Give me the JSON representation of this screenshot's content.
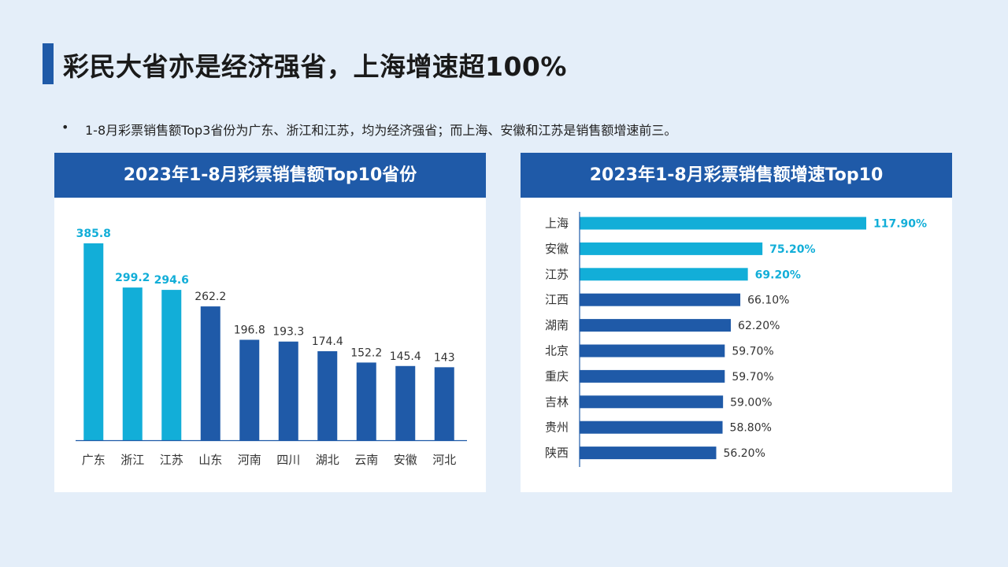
{
  "page": {
    "title": "彩民大省亦是经济强省，上海增速超100%",
    "bullet_marker": "•",
    "bullet": "1-8月彩票销售额Top3省份为广东、浙江和江苏，均为经济强省；而上海、安徽和江苏是销售额增速前三。"
  },
  "colors": {
    "highlight": "#12aed8",
    "normal": "#1f5aa8",
    "header_bg": "#1f5aa8"
  },
  "chart_data": [
    {
      "type": "bar",
      "title": "2023年1-8月彩票销售额Top10省份",
      "categories": [
        "广东",
        "浙江",
        "江苏",
        "山东",
        "河南",
        "四川",
        "湖北",
        "云南",
        "安徽",
        "河北"
      ],
      "values": [
        385.8,
        299.2,
        294.6,
        262.2,
        196.8,
        193.3,
        174.4,
        152.2,
        145.4,
        143
      ],
      "labels": [
        "385.8",
        "299.2",
        "294.6",
        "262.2",
        "196.8",
        "193.3",
        "174.4",
        "152.2",
        "145.4",
        "143"
      ],
      "highlighted": [
        true,
        true,
        true,
        false,
        false,
        false,
        false,
        false,
        false,
        false
      ],
      "ylim": [
        0,
        400
      ]
    },
    {
      "type": "bar",
      "orientation": "horizontal",
      "title": "2023年1-8月彩票销售额增速Top10",
      "categories": [
        "上海",
        "安徽",
        "江苏",
        "江西",
        "湖南",
        "北京",
        "重庆",
        "吉林",
        "贵州",
        "陕西"
      ],
      "values": [
        117.9,
        75.2,
        69.2,
        66.1,
        62.2,
        59.7,
        59.7,
        59.0,
        58.8,
        56.2
      ],
      "labels": [
        "117.90%",
        "75.20%",
        "69.20%",
        "66.10%",
        "62.20%",
        "59.70%",
        "59.70%",
        "59.00%",
        "58.80%",
        "56.20%"
      ],
      "highlighted": [
        true,
        true,
        true,
        false,
        false,
        false,
        false,
        false,
        false,
        false
      ],
      "xlim": [
        0,
        130
      ]
    }
  ]
}
